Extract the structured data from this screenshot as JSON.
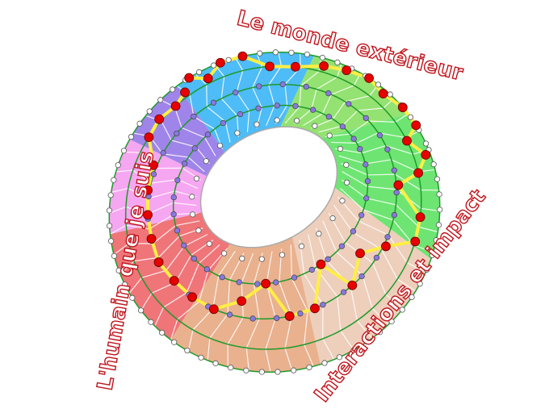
{
  "labels": {
    "top": "Le monde extérieur",
    "left": "L'humain que je suis",
    "bottom_right": "Interactions et impact"
  },
  "colors": {
    "label_text": "#c0141c",
    "ring_lines": "#1e9a2a",
    "path": "#ffee44",
    "path_node": "#e60000",
    "middle_node": "#8878e0",
    "edge_node": "#ffffff",
    "sectors": [
      "#45b8f5",
      "#8ee06a",
      "#66e46a",
      "#ecccb8",
      "#e8ad88",
      "#ee6e72",
      "#f5a2f0",
      "#9a7ee8"
    ]
  }
}
